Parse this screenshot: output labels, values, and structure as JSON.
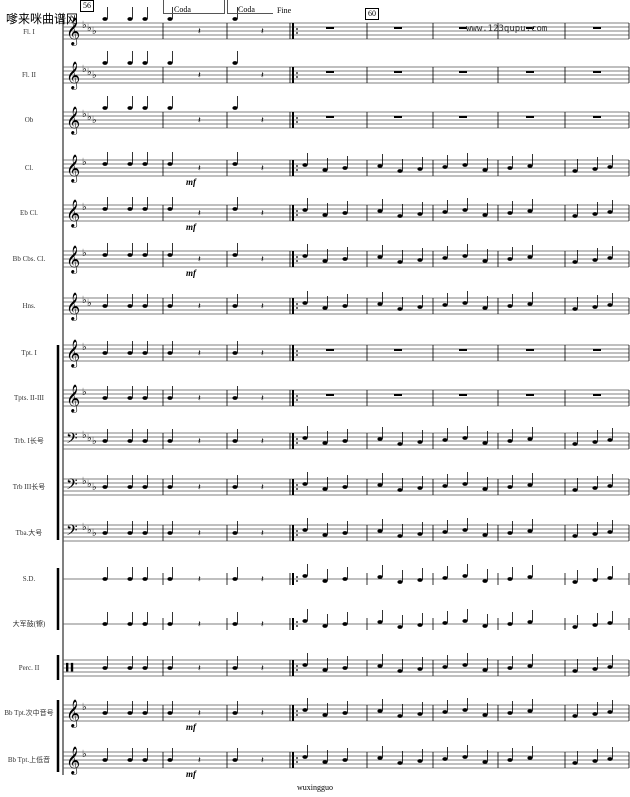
{
  "watermark": "嗲来咪曲谱网",
  "site_url": "www.123qupu.com",
  "footer": "wuxingguo",
  "measure_numbers": [
    "56",
    "60"
  ],
  "markings": {
    "coda1": "Coda",
    "coda2": "Coda",
    "fine": "Fine"
  },
  "dynamic": "mf",
  "instruments": [
    {
      "label": "Fl. I",
      "clef": "treble",
      "key": "Eb"
    },
    {
      "label": "Fl. II",
      "clef": "treble",
      "key": "Eb"
    },
    {
      "label": "Ob",
      "clef": "treble",
      "key": "Eb"
    },
    {
      "label": "Cl.",
      "clef": "treble",
      "key": "F",
      "dynamic": true
    },
    {
      "label": "Eb Cl.",
      "clef": "treble",
      "key": "F",
      "dynamic": true
    },
    {
      "label": "Bb Cbs. Cl.",
      "clef": "treble",
      "key": "F",
      "dynamic": true
    },
    {
      "label": "Hns.",
      "clef": "treble",
      "key": "Bb"
    },
    {
      "label": "Tpt. I",
      "clef": "treble",
      "key": "F"
    },
    {
      "label": "Tpts. II-III",
      "clef": "treble",
      "key": "F"
    },
    {
      "label": "Trb. I长号",
      "clef": "bass",
      "key": "Eb"
    },
    {
      "label": "Trb III长号",
      "clef": "bass",
      "key": "Eb"
    },
    {
      "label": "Tba.大号",
      "clef": "bass",
      "key": "Eb"
    },
    {
      "label": "S.D.",
      "clef": "line",
      "key": ""
    },
    {
      "label": "大军鼓(镲)",
      "clef": "line",
      "key": ""
    },
    {
      "label": "Perc. II",
      "clef": "perc",
      "key": ""
    },
    {
      "label": "Bb Tpt.次中音号",
      "clef": "treble",
      "key": "F",
      "dynamic": true
    },
    {
      "label": "Bb Tpt.上低音",
      "clef": "treble",
      "key": "F",
      "dynamic": true
    }
  ]
}
